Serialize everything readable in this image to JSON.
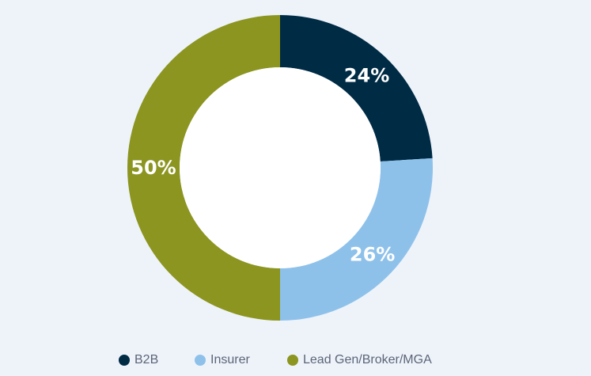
{
  "chart_data": {
    "type": "pie",
    "categories": [
      "B2B",
      "Insurer",
      "Lead Gen/Broker/MGA"
    ],
    "values": [
      24,
      26,
      50
    ],
    "labels": [
      "24%",
      "26%",
      "50%"
    ],
    "colors": [
      "#002b45",
      "#8ec1ea",
      "#8b951f"
    ],
    "donut": true,
    "legend_position": "bottom"
  }
}
